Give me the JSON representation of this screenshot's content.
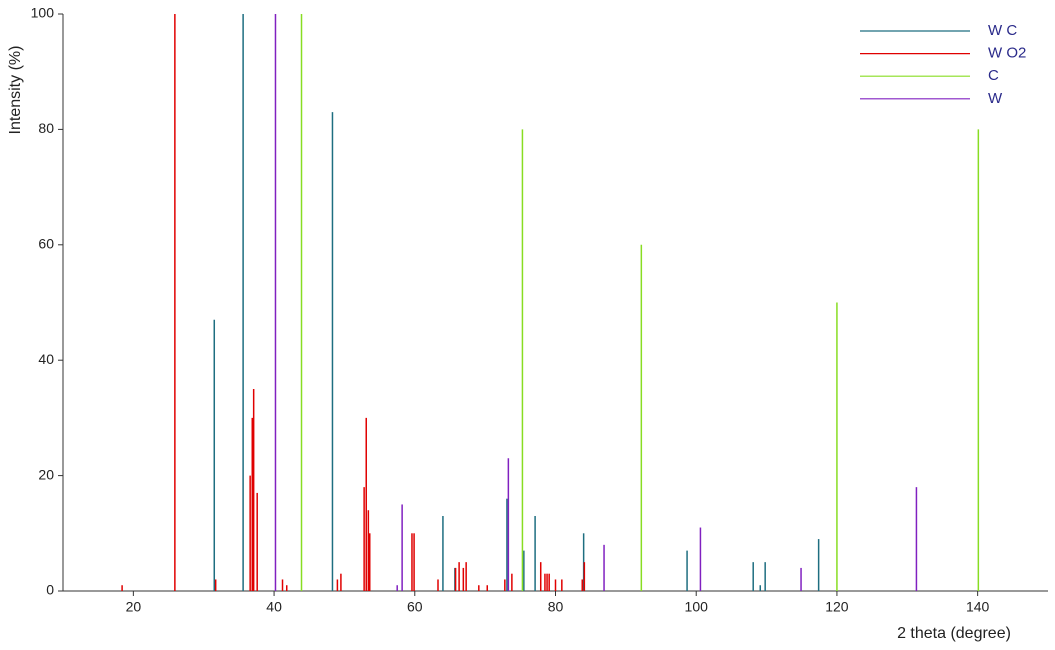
{
  "chart_data": {
    "type": "stem",
    "x_label": "2 theta (degree)",
    "y_label": "Intensity (%)",
    "xlim": [
      10,
      150
    ],
    "xticks": [
      20,
      40,
      60,
      80,
      100,
      120,
      140
    ],
    "ylim": [
      0,
      100
    ],
    "yticks": [
      0,
      20,
      40,
      60,
      80,
      100
    ],
    "grid": false,
    "legend": "upper right",
    "series": [
      {
        "name": "W C",
        "color": "#1e6e80",
        "x": [
          31.5,
          35.6,
          48.3,
          64.0,
          65.7,
          73.1,
          75.5,
          77.1,
          84.0,
          98.7,
          108.1,
          109.1,
          109.8,
          117.4
        ],
        "values": [
          47,
          100,
          83,
          13,
          4,
          16,
          7,
          13,
          10,
          7,
          5,
          1,
          5,
          9
        ]
      },
      {
        "name": "W O2",
        "color": "#e00000",
        "x": [
          18.4,
          25.9,
          31.7,
          36.6,
          36.9,
          37.1,
          37.6,
          41.2,
          41.8,
          49.0,
          49.5,
          52.8,
          53.1,
          53.4,
          53.6,
          59.6,
          59.9,
          63.3,
          65.8,
          66.3,
          66.9,
          67.3,
          69.1,
          70.3,
          72.8,
          73.8,
          77.9,
          78.5,
          78.8,
          79.1,
          80.0,
          80.9,
          83.8,
          84.1
        ],
        "values": [
          1,
          100,
          2,
          20,
          30,
          35,
          17,
          2,
          1,
          2,
          3,
          18,
          30,
          14,
          10,
          10,
          10,
          2,
          4,
          5,
          4,
          5,
          1,
          1,
          2,
          3,
          5,
          3,
          3,
          3,
          2,
          2,
          2,
          5
        ]
      },
      {
        "name": "C",
        "color": "#88dd22",
        "x": [
          43.9,
          75.3,
          92.2,
          120.0,
          140.1
        ],
        "values": [
          100,
          80,
          60,
          50,
          80
        ]
      },
      {
        "name": "W",
        "color": "#8020c0",
        "x": [
          40.2,
          57.5,
          58.2,
          73.3,
          86.9,
          100.6,
          114.9,
          131.3
        ],
        "values": [
          100,
          1,
          15,
          23,
          8,
          11,
          4,
          18
        ]
      }
    ]
  }
}
